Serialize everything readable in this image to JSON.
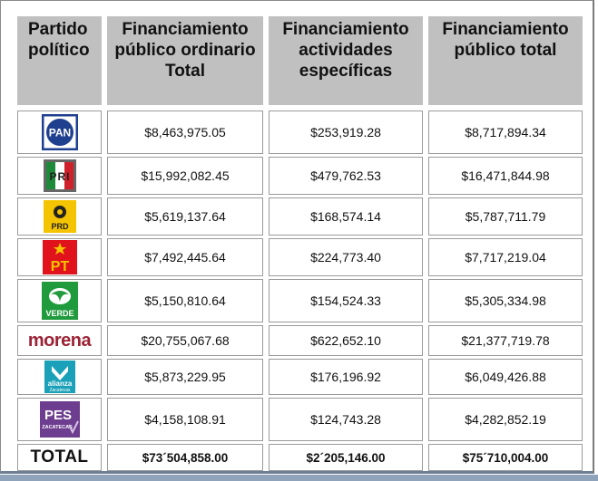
{
  "headers": {
    "col1": "Partido político",
    "col2": "Financiamiento público ordinario Total",
    "col3": "Financiamiento actividades específicas",
    "col4": "Financiamiento público total"
  },
  "rows": [
    {
      "party": "PAN",
      "logo_text": "PAN",
      "ordinario": "$8,463,975.05",
      "especificas": "$253,919.28",
      "total": "$8,717,894.34"
    },
    {
      "party": "PRI",
      "logo_text": "PRI",
      "ordinario": "$15,992,082.45",
      "especificas": "$479,762.53",
      "total": "$16,471,844.98"
    },
    {
      "party": "PRD",
      "logo_text": "PRD",
      "ordinario": "$5,619,137.64",
      "especificas": "$168,574.14",
      "total": "$5,787,711.79"
    },
    {
      "party": "PT",
      "logo_text": "PT",
      "ordinario": "$7,492,445.64",
      "especificas": "$224,773.40",
      "total": "$7,717,219.04"
    },
    {
      "party": "VERDE",
      "logo_text": "VERDE",
      "ordinario": "$5,150,810.64",
      "especificas": "$154,524.33",
      "total": "$5,305,334.98"
    },
    {
      "party": "morena",
      "logo_text": "morena",
      "ordinario": "$20,755,067.68",
      "especificas": "$622,652.10",
      "total": "$21,377,719.78"
    },
    {
      "party": "alianza Zacatecas",
      "logo_text": "alianza",
      "logo_sub": "Zacatecas",
      "ordinario": "$5,873,229.95",
      "especificas": "$176,196.92",
      "total": "$6,049,426.88"
    },
    {
      "party": "PES Zacatecas",
      "logo_text": "PES",
      "logo_sub": "ZACATECAS",
      "ordinario": "$4,158,108.91",
      "especificas": "$124,743.28",
      "total": "$4,282,852.19"
    }
  ],
  "totals": {
    "label": "TOTAL",
    "ordinario": "$73´504,858.00",
    "especificas": "$2´205,146.00",
    "total": "$75´710,004.00"
  },
  "colors": {
    "header_bg": "#c0c0c0",
    "pan_blue": "#1f3f8f",
    "pri_red": "#d0202a",
    "pri_green": "#1d8a3a",
    "prd_yellow": "#f5c400",
    "pt_red": "#e0121b",
    "verde_green": "#1f9a3c",
    "morena_maroon": "#9b2335",
    "alianza_teal": "#1aa0b8",
    "pes_purple": "#6d3d8f"
  }
}
